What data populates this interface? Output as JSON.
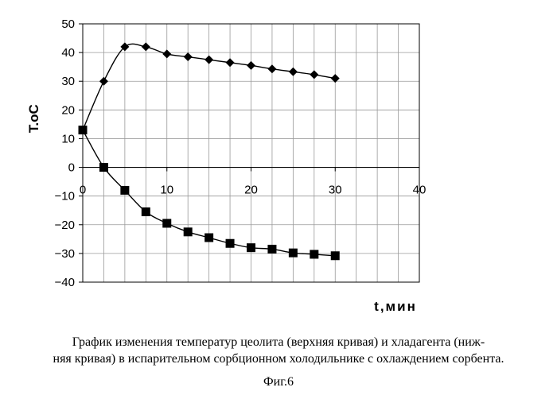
{
  "chart_data": {
    "type": "line",
    "xlabel": "t,мин",
    "ylabel": "T.oC",
    "xlim": [
      0,
      40
    ],
    "ylim": [
      -40,
      50
    ],
    "xticks": [
      0,
      10,
      20,
      30,
      40
    ],
    "yticks": [
      50,
      40,
      30,
      20,
      10,
      0,
      -10,
      -20,
      -30,
      -40
    ],
    "grid": true,
    "series": [
      {
        "marker": "diamond",
        "color": "#000000",
        "x": [
          0,
          2.5,
          5,
          7.5,
          10,
          12.5,
          15,
          17.5,
          20,
          22.5,
          25,
          27.5,
          30
        ],
        "y": [
          13,
          30,
          42,
          42,
          39.5,
          38.5,
          37.5,
          36.5,
          35.5,
          34.3,
          33.3,
          32.3,
          31
        ]
      },
      {
        "marker": "square",
        "color": "#000000",
        "x": [
          0,
          2.5,
          5,
          7.5,
          10,
          12.5,
          15,
          17.5,
          20,
          22.5,
          25,
          27.5,
          30
        ],
        "y": [
          13,
          0,
          -8,
          -15.5,
          -19.5,
          -22.5,
          -24.5,
          -26.5,
          -28,
          -28.5,
          -29.8,
          -30.3,
          -30.8
        ]
      }
    ]
  },
  "caption": {
    "line1": "График изменения температур цеолита (верхняя кривая) и хладагента (ниж-",
    "line2": "няя кривая) в испарительном сорбционном холодильнике с охлаждением сорбента."
  },
  "figure_label": "Фиг.6"
}
